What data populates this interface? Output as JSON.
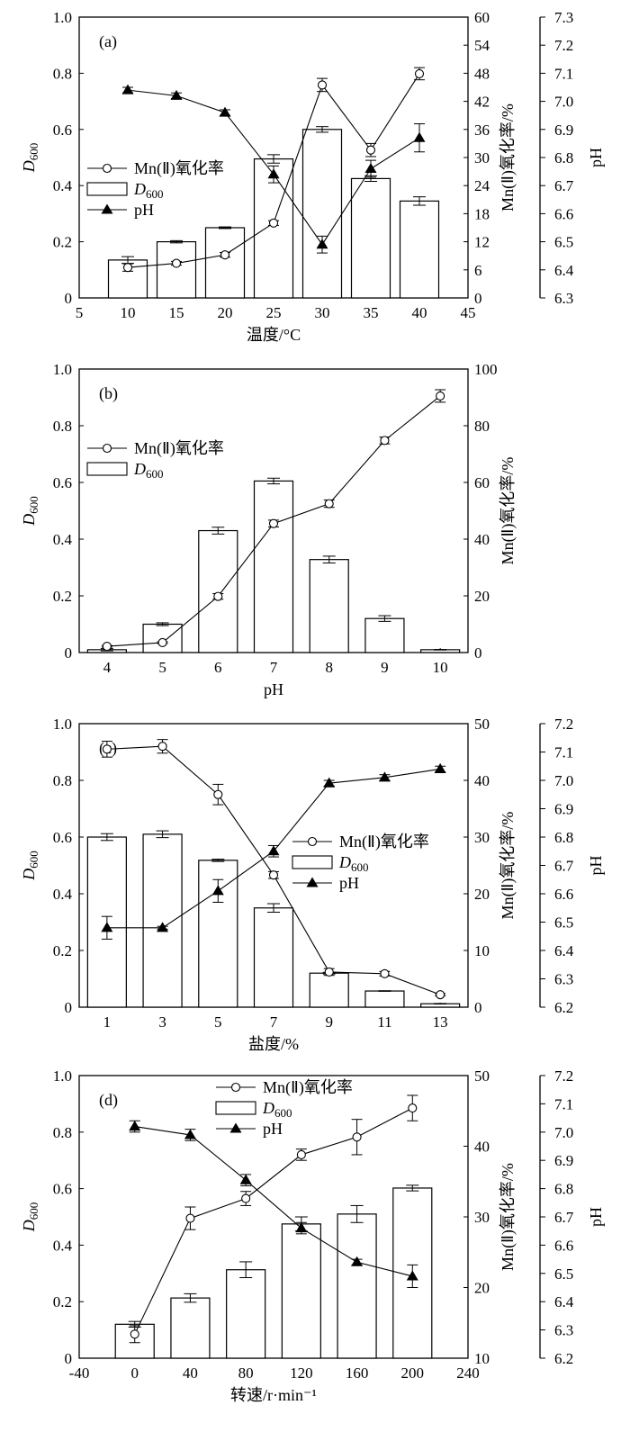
{
  "chart_data": [
    {
      "type": "bar",
      "panel_label": "(a)",
      "xlabel": "温度/°C",
      "ylabel_left": "D600",
      "ylabel_right": "Mn(Ⅱ)氧化率/%",
      "ylabel_right2": "pH",
      "xlim": [
        5,
        45
      ],
      "xticks": [
        5,
        10,
        15,
        20,
        25,
        30,
        35,
        40,
        45
      ],
      "ylim_left": [
        0,
        1.0
      ],
      "yticks_left": [
        "0",
        "0.2",
        "0.4",
        "0.6",
        "0.8",
        "1.0"
      ],
      "ylim_right": [
        0,
        60
      ],
      "yticks_right": [
        "0",
        "6",
        "12",
        "18",
        "24",
        "30",
        "36",
        "42",
        "48",
        "54",
        "60"
      ],
      "ylim_right2": [
        6.3,
        7.3
      ],
      "yticks_right2": [
        "6.3",
        "6.4",
        "6.5",
        "6.6",
        "6.7",
        "6.8",
        "6.9",
        "7.0",
        "7.1",
        "7.2",
        "7.3"
      ],
      "x": [
        10,
        15,
        20,
        25,
        30,
        35,
        40
      ],
      "legend": [
        "Mn(Ⅱ)氧化率",
        "D600",
        "pH"
      ],
      "legend_position": "left-middle",
      "series": [
        {
          "name": "D600",
          "kind": "bar",
          "axis": "left",
          "values": [
            0.135,
            0.2,
            0.25,
            0.495,
            0.6,
            0.425,
            0.345
          ],
          "errors": [
            0.012,
            0.004,
            0.003,
            0.015,
            0.01,
            0.01,
            0.015
          ]
        },
        {
          "name": "Mn(Ⅱ)氧化率",
          "kind": "line-open-circle",
          "axis": "right",
          "values": [
            6.5,
            7.4,
            9.2,
            16.0,
            45.5,
            31.6,
            47.9
          ],
          "errors": [
            0.8,
            0.4,
            0.5,
            0.5,
            1.4,
            1.4,
            1.3
          ]
        },
        {
          "name": "pH",
          "kind": "line-filled-triangle",
          "axis": "right2",
          "values": [
            7.04,
            7.02,
            6.96,
            6.74,
            6.49,
            6.76,
            6.87
          ],
          "errors": [
            0.01,
            0.01,
            0.01,
            0.03,
            0.03,
            0.03,
            0.05
          ]
        }
      ]
    },
    {
      "type": "bar",
      "panel_label": "(b)",
      "xlabel": "pH",
      "ylabel_left": "D600",
      "ylabel_right": "Mn(Ⅱ)氧化率/%",
      "categories": [
        "4",
        "5",
        "6",
        "7",
        "8",
        "9",
        "10"
      ],
      "ylim_left": [
        0,
        1.0
      ],
      "yticks_left": [
        "0",
        "0.2",
        "0.4",
        "0.6",
        "0.8",
        "1.0"
      ],
      "ylim_right": [
        0,
        100
      ],
      "yticks_right": [
        "0",
        "20",
        "40",
        "60",
        "80",
        "100"
      ],
      "legend": [
        "Mn(Ⅱ)氧化率",
        "D600"
      ],
      "legend_position": "left-middle",
      "series": [
        {
          "name": "D600",
          "kind": "bar",
          "axis": "left",
          "values": [
            0.01,
            0.1,
            0.43,
            0.605,
            0.328,
            0.12,
            0.01
          ],
          "errors": [
            0.004,
            0.005,
            0.012,
            0.01,
            0.012,
            0.01,
            0.001
          ]
        },
        {
          "name": "Mn(Ⅱ)氧化率",
          "kind": "line-open-circle",
          "axis": "right",
          "values": [
            2.2,
            3.5,
            19.8,
            45.5,
            52.5,
            74.8,
            90.5
          ],
          "errors": [
            0.3,
            0.3,
            1.0,
            1.2,
            1.3,
            1.2,
            2.2
          ]
        }
      ]
    },
    {
      "type": "bar",
      "panel_label": "(c)",
      "xlabel": "盐度/%",
      "ylabel_left": "D600",
      "ylabel_right": "Mn(Ⅱ)氧化率/%",
      "ylabel_right2": "pH",
      "categories": [
        "1",
        "3",
        "5",
        "7",
        "9",
        "11",
        "13"
      ],
      "ylim_left": [
        0,
        1.0
      ],
      "yticks_left": [
        "0",
        "0.2",
        "0.4",
        "0.6",
        "0.8",
        "1.0"
      ],
      "ylim_right": [
        0,
        50
      ],
      "yticks_right": [
        "0",
        "10",
        "20",
        "30",
        "40",
        "50"
      ],
      "ylim_right2": [
        6.2,
        7.2
      ],
      "yticks_right2": [
        "6.2",
        "6.3",
        "6.4",
        "6.5",
        "6.6",
        "6.7",
        "6.8",
        "6.9",
        "7.0",
        "7.1",
        "7.2"
      ],
      "legend": [
        "Mn(Ⅱ)氧化率",
        "D600",
        "pH"
      ],
      "legend_position": "right-middle",
      "series": [
        {
          "name": "D600",
          "kind": "bar",
          "axis": "left",
          "values": [
            0.6,
            0.61,
            0.518,
            0.35,
            0.12,
            0.057,
            0.012
          ],
          "errors": [
            0.012,
            0.012,
            0.004,
            0.015,
            0.003,
            0.001,
            0.001
          ]
        },
        {
          "name": "Mn(Ⅱ)氧化率",
          "kind": "line-open-circle",
          "axis": "right",
          "values": [
            45.5,
            46.0,
            37.5,
            23.3,
            6.2,
            5.9,
            2.2
          ],
          "errors": [
            1.4,
            1.2,
            1.8,
            0.6,
            0.6,
            0.4,
            0.2
          ]
        },
        {
          "name": "pH",
          "kind": "line-filled-triangle",
          "axis": "right2",
          "values": [
            6.48,
            6.48,
            6.61,
            6.75,
            6.99,
            7.01,
            7.04
          ],
          "errors": [
            0.04,
            0.005,
            0.04,
            0.02,
            0.01,
            0.01,
            0.01
          ]
        }
      ]
    },
    {
      "type": "bar",
      "panel_label": "(d)",
      "xlabel": "转速/r·min⁻¹",
      "ylabel_left": "D600",
      "ylabel_right": "Mn(Ⅱ)氧化率/%",
      "ylabel_right2": "pH",
      "xlim": [
        -40,
        240
      ],
      "xticks": [
        -40,
        0,
        40,
        80,
        120,
        160,
        200,
        240
      ],
      "ylim_left": [
        0,
        1.0
      ],
      "yticks_left": [
        "0",
        "0.2",
        "0.4",
        "0.6",
        "0.8",
        "1.0"
      ],
      "ylim_right": [
        10,
        50
      ],
      "yticks_right": [
        "10",
        "20",
        "30",
        "40",
        "50"
      ],
      "ylim_right2": [
        6.2,
        7.2
      ],
      "yticks_right2": [
        "6.2",
        "6.3",
        "6.4",
        "6.5",
        "6.6",
        "6.7",
        "6.8",
        "6.9",
        "7.0",
        "7.1",
        "7.2"
      ],
      "x": [
        0,
        40,
        80,
        120,
        160,
        200
      ],
      "legend": [
        "Mn(Ⅱ)氧化率",
        "D600",
        "pH"
      ],
      "legend_position": "top-center",
      "series": [
        {
          "name": "D600",
          "kind": "bar",
          "axis": "left",
          "values": [
            0.12,
            0.213,
            0.313,
            0.475,
            0.51,
            0.602
          ],
          "errors": [
            0.01,
            0.015,
            0.028,
            0.025,
            0.03,
            0.01
          ]
        },
        {
          "name": "Mn(Ⅱ)氧化率",
          "kind": "line-open-circle",
          "axis": "right",
          "values": [
            13.4,
            29.8,
            32.6,
            38.8,
            41.3,
            45.4
          ],
          "errors": [
            1.2,
            1.6,
            1.0,
            0.8,
            2.5,
            1.8
          ]
        },
        {
          "name": "pH",
          "kind": "line-filled-triangle",
          "axis": "right2",
          "values": [
            7.02,
            6.99,
            6.83,
            6.66,
            6.54,
            6.49
          ],
          "errors": [
            0.02,
            0.02,
            0.02,
            0.02,
            0.01,
            0.04
          ]
        }
      ]
    }
  ]
}
